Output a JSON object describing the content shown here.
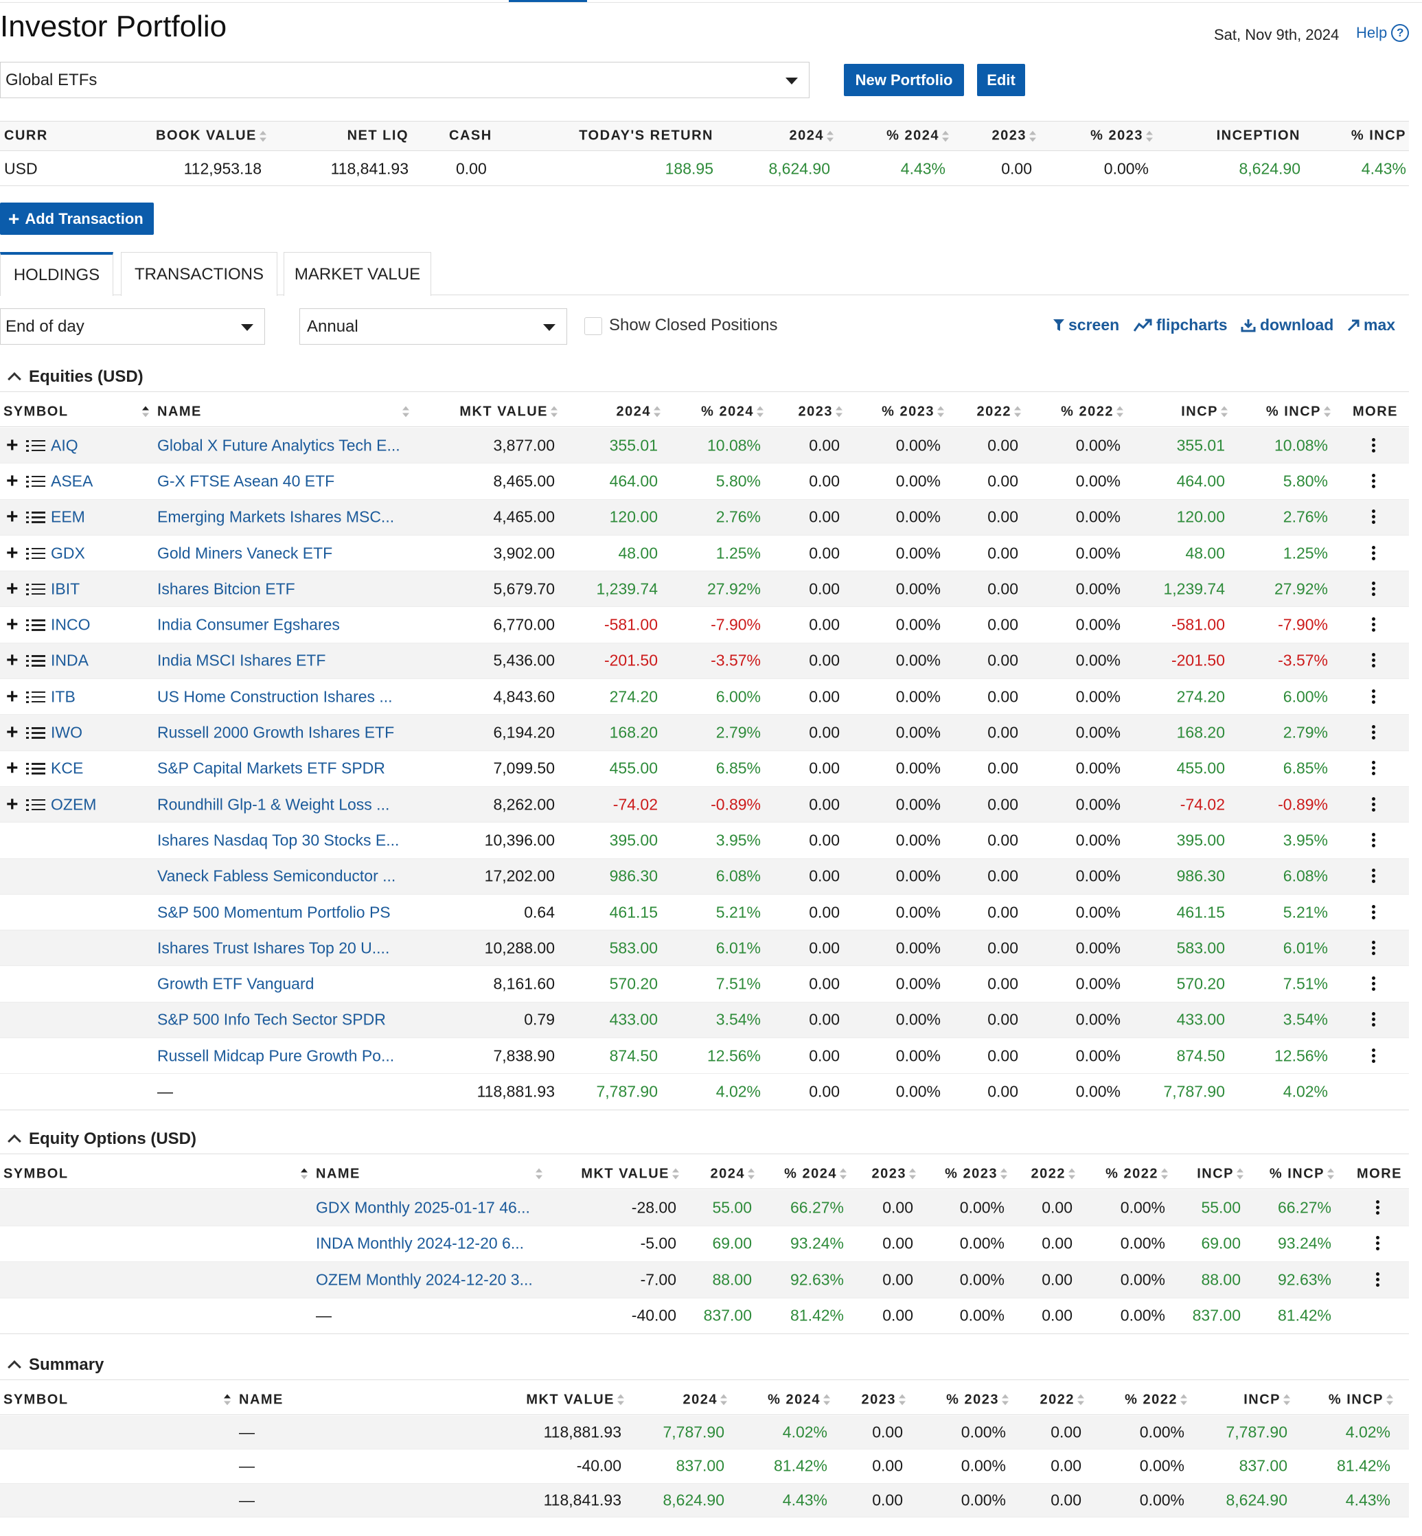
{
  "header": {
    "title": "Investor Portfolio",
    "date": "Sat, Nov 9th, 2024",
    "help_label": "Help",
    "portfolio_select": "Global ETFs",
    "new_portfolio_label": "New Portfolio",
    "edit_label": "Edit"
  },
  "account_summary": {
    "headers": [
      "CURR",
      "BOOK VALUE",
      "NET LIQ",
      "CASH",
      "TODAY'S RETURN",
      "2024",
      "% 2024",
      "2023",
      "% 2023",
      "INCEPTION",
      "% INCP"
    ],
    "values": [
      "USD",
      "112,953.18",
      "118,841.93",
      "0.00",
      "188.95",
      "8,624.90",
      "4.43%",
      "0.00",
      "0.00%",
      "8,624.90",
      "4.43%"
    ]
  },
  "add_transaction_label": "Add Transaction",
  "tabs": [
    "HOLDINGS",
    "TRANSACTIONS",
    "MARKET VALUE"
  ],
  "controls": {
    "price_select": "End of day",
    "period_select": "Annual",
    "show_closed_label": "Show Closed Positions",
    "screen_label": "screen",
    "flipcharts_label": "flipcharts",
    "download_label": "download",
    "max_label": "max"
  },
  "equities": {
    "title": "Equities (USD)",
    "headers": [
      "SYMBOL",
      "NAME",
      "MKT VALUE",
      "2024",
      "% 2024",
      "2023",
      "% 2023",
      "2022",
      "% 2022",
      "INCP",
      "% INCP",
      "MORE"
    ],
    "rows": [
      [
        "AIQ",
        "Global X Future Analytics Tech E...",
        "3,877.00",
        "355.01",
        "10.08%",
        "0.00",
        "0.00%",
        "0.00",
        "0.00%",
        "355.01",
        "10.08%"
      ],
      [
        "ASEA",
        "G-X FTSE Asean 40 ETF",
        "8,465.00",
        "464.00",
        "5.80%",
        "0.00",
        "0.00%",
        "0.00",
        "0.00%",
        "464.00",
        "5.80%"
      ],
      [
        "EEM",
        "Emerging Markets Ishares MSC...",
        "4,465.00",
        "120.00",
        "2.76%",
        "0.00",
        "0.00%",
        "0.00",
        "0.00%",
        "120.00",
        "2.76%"
      ],
      [
        "GDX",
        "Gold Miners Vaneck ETF",
        "3,902.00",
        "48.00",
        "1.25%",
        "0.00",
        "0.00%",
        "0.00",
        "0.00%",
        "48.00",
        "1.25%"
      ],
      [
        "IBIT",
        "Ishares Bitcion ETF",
        "5,679.70",
        "1,239.74",
        "27.92%",
        "0.00",
        "0.00%",
        "0.00",
        "0.00%",
        "1,239.74",
        "27.92%"
      ],
      [
        "INCO",
        "India Consumer Egshares",
        "6,770.00",
        "-581.00",
        "-7.90%",
        "0.00",
        "0.00%",
        "0.00",
        "0.00%",
        "-581.00",
        "-7.90%"
      ],
      [
        "INDA",
        "India MSCI Ishares ETF",
        "5,436.00",
        "-201.50",
        "-3.57%",
        "0.00",
        "0.00%",
        "0.00",
        "0.00%",
        "-201.50",
        "-3.57%"
      ],
      [
        "ITB",
        "US Home Construction Ishares ...",
        "4,843.60",
        "274.20",
        "6.00%",
        "0.00",
        "0.00%",
        "0.00",
        "0.00%",
        "274.20",
        "6.00%"
      ],
      [
        "IWO",
        "Russell 2000 Growth Ishares ETF",
        "6,194.20",
        "168.20",
        "2.79%",
        "0.00",
        "0.00%",
        "0.00",
        "0.00%",
        "168.20",
        "2.79%"
      ],
      [
        "KCE",
        "S&P Capital Markets ETF SPDR",
        "7,099.50",
        "455.00",
        "6.85%",
        "0.00",
        "0.00%",
        "0.00",
        "0.00%",
        "455.00",
        "6.85%"
      ],
      [
        "OZEM",
        "Roundhill Glp-1 & Weight Loss ...",
        "8,262.00",
        "-74.02",
        "-0.89%",
        "0.00",
        "0.00%",
        "0.00",
        "0.00%",
        "-74.02",
        "-0.89%"
      ],
      [
        "",
        "Ishares Nasdaq Top 30 Stocks E...",
        "10,396.00",
        "395.00",
        "3.95%",
        "0.00",
        "0.00%",
        "0.00",
        "0.00%",
        "395.00",
        "3.95%"
      ],
      [
        "",
        "Vaneck Fabless Semiconductor ...",
        "17,202.00",
        "986.30",
        "6.08%",
        "0.00",
        "0.00%",
        "0.00",
        "0.00%",
        "986.30",
        "6.08%"
      ],
      [
        "",
        "S&P 500 Momentum Portfolio PS",
        "0.64",
        "461.15",
        "5.21%",
        "0.00",
        "0.00%",
        "0.00",
        "0.00%",
        "461.15",
        "5.21%"
      ],
      [
        "",
        "Ishares Trust Ishares Top 20 U....",
        "10,288.00",
        "583.00",
        "6.01%",
        "0.00",
        "0.00%",
        "0.00",
        "0.00%",
        "583.00",
        "6.01%"
      ],
      [
        "",
        "Growth ETF Vanguard",
        "8,161.60",
        "570.20",
        "7.51%",
        "0.00",
        "0.00%",
        "0.00",
        "0.00%",
        "570.20",
        "7.51%"
      ],
      [
        "",
        "S&P 500 Info Tech Sector SPDR",
        "0.79",
        "433.00",
        "3.54%",
        "0.00",
        "0.00%",
        "0.00",
        "0.00%",
        "433.00",
        "3.54%"
      ],
      [
        "",
        "Russell Midcap Pure Growth Po...",
        "7,838.90",
        "874.50",
        "12.56%",
        "0.00",
        "0.00%",
        "0.00",
        "0.00%",
        "874.50",
        "12.56%"
      ]
    ],
    "total": [
      "",
      "—",
      "118,881.93",
      "7,787.90",
      "4.02%",
      "0.00",
      "0.00%",
      "0.00",
      "0.00%",
      "7,787.90",
      "4.02%"
    ]
  },
  "equity_options": {
    "title": "Equity Options (USD)",
    "headers": [
      "SYMBOL",
      "NAME",
      "MKT VALUE",
      "2024",
      "% 2024",
      "2023",
      "% 2023",
      "2022",
      "% 2022",
      "INCP",
      "% INCP",
      "MORE"
    ],
    "rows": [
      [
        "",
        "GDX Monthly 2025-01-17 46...",
        "-28.00",
        "55.00",
        "66.27%",
        "0.00",
        "0.00%",
        "0.00",
        "0.00%",
        "55.00",
        "66.27%"
      ],
      [
        "",
        "INDA Monthly 2024-12-20 6...",
        "-5.00",
        "69.00",
        "93.24%",
        "0.00",
        "0.00%",
        "0.00",
        "0.00%",
        "69.00",
        "93.24%"
      ],
      [
        "",
        "OZEM Monthly 2024-12-20 3...",
        "-7.00",
        "88.00",
        "92.63%",
        "0.00",
        "0.00%",
        "0.00",
        "0.00%",
        "88.00",
        "92.63%"
      ]
    ],
    "total": [
      "",
      "—",
      "-40.00",
      "837.00",
      "81.42%",
      "0.00",
      "0.00%",
      "0.00",
      "0.00%",
      "837.00",
      "81.42%"
    ]
  },
  "summary": {
    "title": "Summary",
    "headers": [
      "SYMBOL",
      "NAME",
      "MKT VALUE",
      "2024",
      "% 2024",
      "2023",
      "% 2023",
      "2022",
      "% 2022",
      "INCP",
      "% INCP"
    ],
    "rows": [
      [
        "",
        "—",
        "118,881.93",
        "7,787.90",
        "4.02%",
        "0.00",
        "0.00%",
        "0.00",
        "0.00%",
        "7,787.90",
        "4.02%"
      ],
      [
        "",
        "—",
        "-40.00",
        "837.00",
        "81.42%",
        "0.00",
        "0.00%",
        "0.00",
        "0.00%",
        "837.00",
        "81.42%"
      ],
      [
        "",
        "—",
        "118,841.93",
        "8,624.90",
        "4.43%",
        "0.00",
        "0.00%",
        "0.00",
        "0.00%",
        "8,624.90",
        "4.43%"
      ]
    ]
  },
  "colors": {
    "accent": "#0b5cab",
    "positive": "#2e8b3a",
    "negative": "#cc1a1a",
    "link": "#1b5a9a",
    "row_alt": "#f3f3f3"
  }
}
